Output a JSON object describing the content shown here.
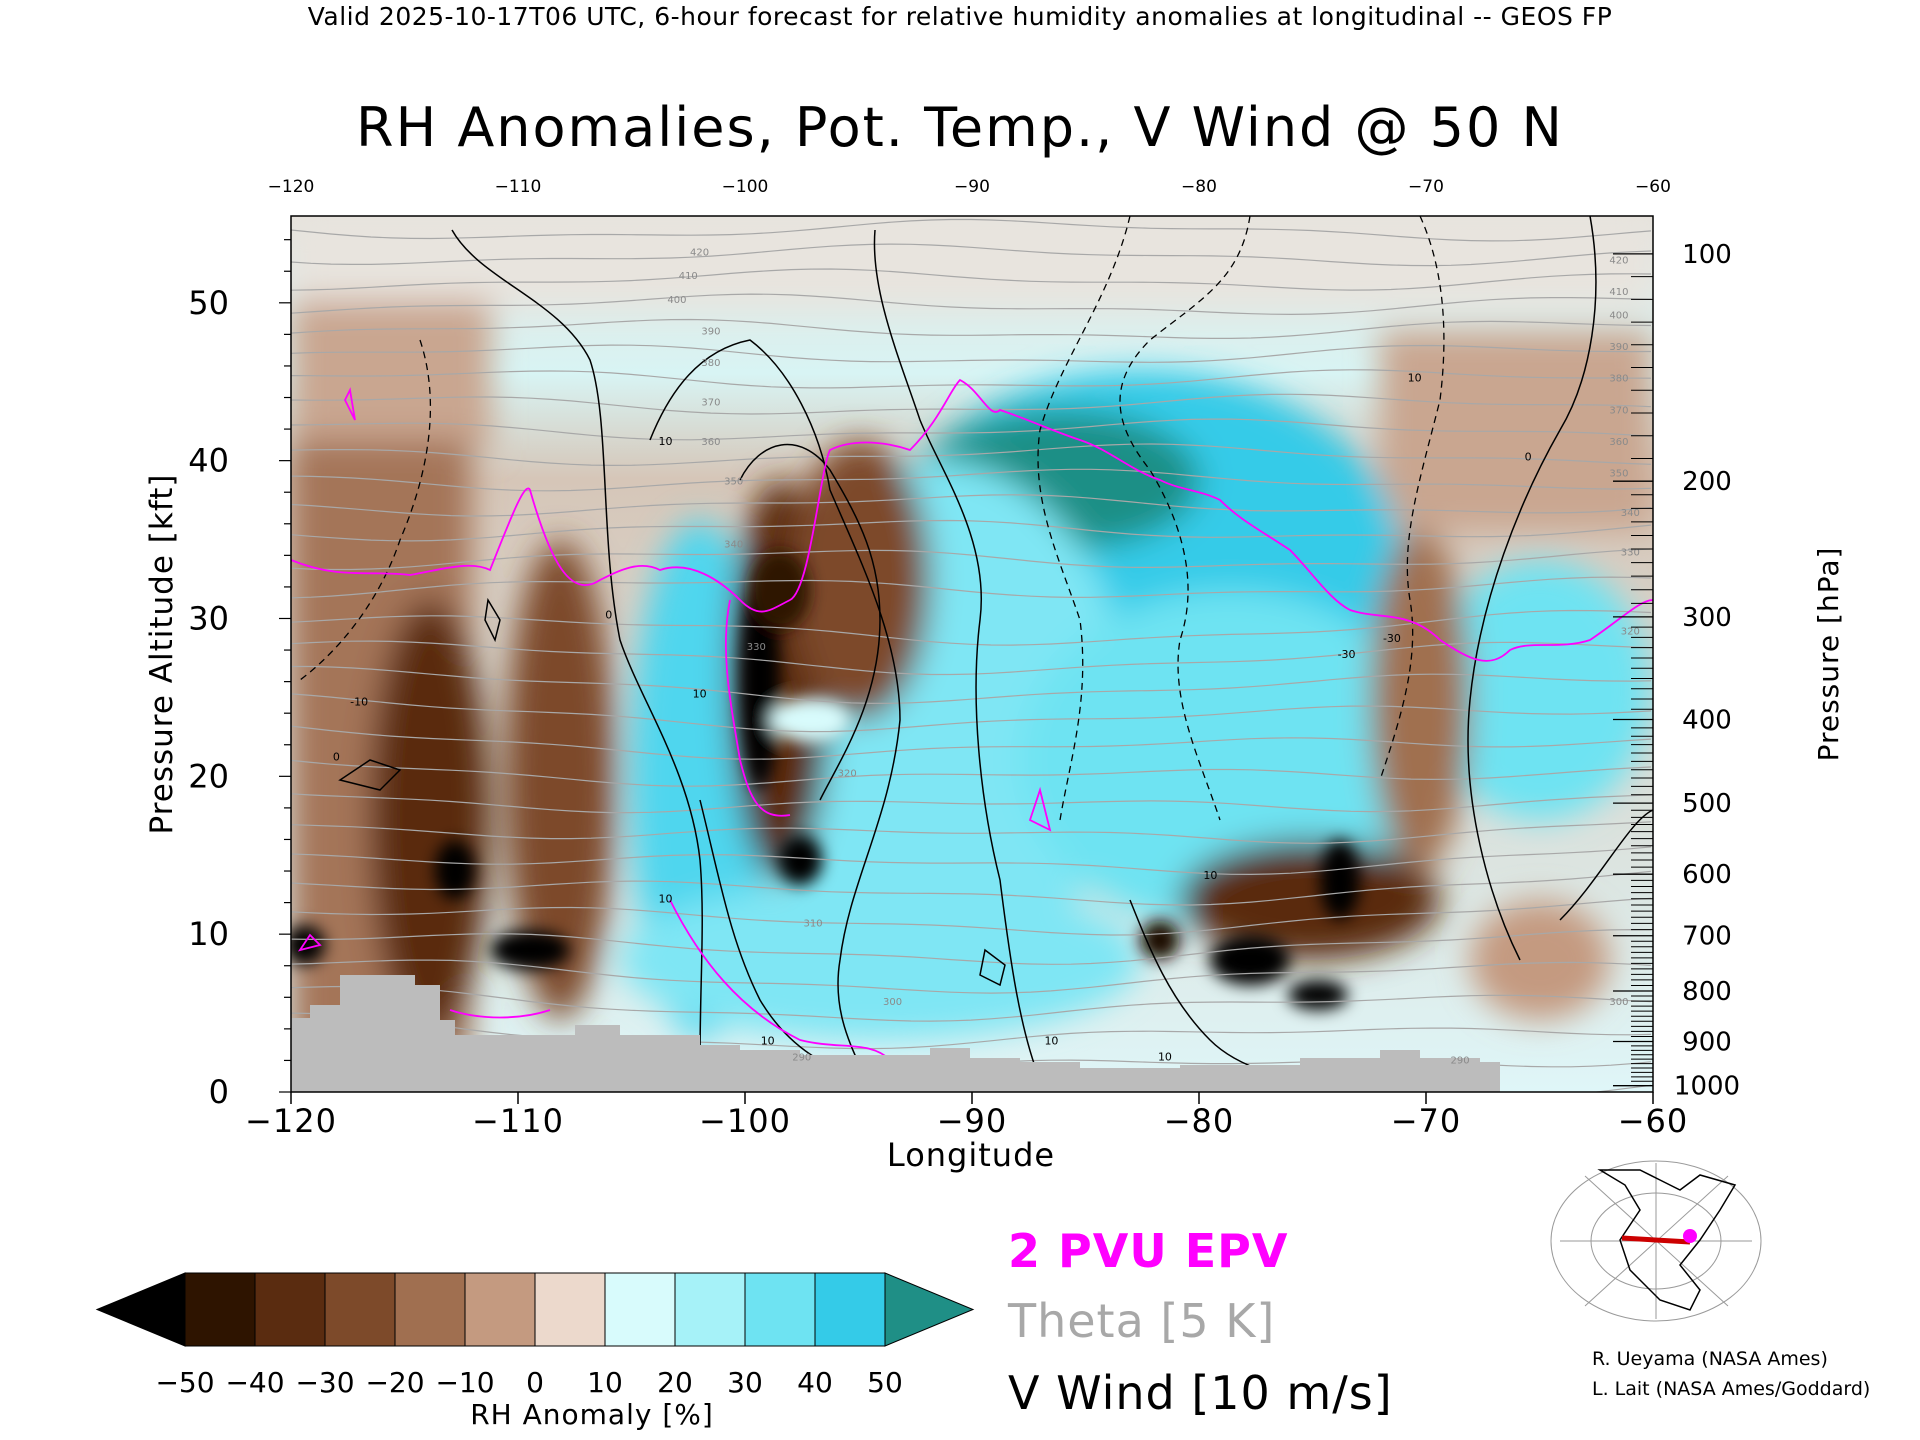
{
  "header": "Valid 2025-10-17T06 UTC, 6-hour forecast for relative humidity anomalies at longitudinal -- GEOS FP",
  "chart_data": {
    "type": "heatmap",
    "title": "RH Anomalies, Pot. Temp., V Wind @ 50 N",
    "xlabel": "Longitude",
    "ylabel_left": "Pressure Altitude [kft]",
    "ylabel_right": "Pressure [hPa]",
    "xlim": [
      -120,
      -60
    ],
    "ylim_kft": [
      0,
      55.5
    ],
    "x_ticks": [
      -120,
      -110,
      -100,
      -90,
      -80,
      -70,
      -60
    ],
    "x_tick_labels": [
      "−120",
      "−110",
      "−100",
      "−90",
      "−80",
      "−70",
      "−60"
    ],
    "y_ticks_kft": [
      0,
      10,
      20,
      30,
      40,
      50
    ],
    "pressure_ticks": [
      {
        "hPa": 100,
        "kft": 53.1
      },
      {
        "hPa": 200,
        "kft": 38.7
      },
      {
        "hPa": 300,
        "kft": 30.1
      },
      {
        "hPa": 400,
        "kft": 23.6
      },
      {
        "hPa": 500,
        "kft": 18.3
      },
      {
        "hPa": 600,
        "kft": 13.8
      },
      {
        "hPa": 700,
        "kft": 9.9
      },
      {
        "hPa": 800,
        "kft": 6.4
      },
      {
        "hPa": 900,
        "kft": 3.2
      },
      {
        "hPa": 1000,
        "kft": 0.4
      }
    ],
    "colorbar": {
      "label": "RH Anomaly [%]",
      "ticks": [
        -50,
        -40,
        -30,
        -20,
        -10,
        0,
        10,
        20,
        30,
        40,
        50
      ],
      "tick_labels": [
        "−50",
        "−40",
        "−30",
        "−20",
        "−10",
        "0",
        "10",
        "20",
        "30",
        "40",
        "50"
      ],
      "colors": [
        "#2e1400",
        "#5a2c10",
        "#7d4a2a",
        "#a06f50",
        "#c49a80",
        "#ecd9cc",
        "#d8fbfc",
        "#a6f2f8",
        "#6ee3f2",
        "#34cbe8",
        "#12a8cc"
      ],
      "under_color": "#000000",
      "over_color": "#1f8f86"
    },
    "legend": [
      {
        "label": "2 PVU EPV",
        "color": "#ff00ff"
      },
      {
        "label": "Theta [5 K]",
        "color": "#a8a8a8"
      },
      {
        "label": "V Wind [10 m/s]",
        "color": "#000000"
      }
    ],
    "theta_labels_left": [
      {
        "x": -102,
        "kft": 53,
        "text": "420"
      },
      {
        "x": -102.5,
        "kft": 51.5,
        "text": "410"
      },
      {
        "x": -103,
        "kft": 50,
        "text": "400"
      },
      {
        "x": -101.5,
        "kft": 48,
        "text": "390"
      },
      {
        "x": -101.5,
        "kft": 46,
        "text": "380"
      },
      {
        "x": -101.5,
        "kft": 43.5,
        "text": "370"
      },
      {
        "x": -101.5,
        "kft": 41,
        "text": "360"
      },
      {
        "x": -100.5,
        "kft": 38.5,
        "text": "350"
      },
      {
        "x": -100.5,
        "kft": 34.5,
        "text": "340"
      },
      {
        "x": -99.5,
        "kft": 28,
        "text": "330"
      },
      {
        "x": -95.5,
        "kft": 20,
        "text": "320"
      },
      {
        "x": -97,
        "kft": 10.5,
        "text": "310"
      },
      {
        "x": -93.5,
        "kft": 5.5,
        "text": "300"
      },
      {
        "x": -97.5,
        "kft": 2,
        "text": "290"
      },
      {
        "x": -68.5,
        "kft": 1.8,
        "text": "290"
      },
      {
        "x": -61.5,
        "kft": 5.5,
        "text": "300"
      },
      {
        "x": -61,
        "kft": 29,
        "text": "320"
      },
      {
        "x": -61,
        "kft": 34,
        "text": "330"
      },
      {
        "x": -61,
        "kft": 36.5,
        "text": "340"
      },
      {
        "x": -61.5,
        "kft": 39,
        "text": "350"
      },
      {
        "x": -61.5,
        "kft": 41,
        "text": "360"
      },
      {
        "x": -61.5,
        "kft": 43,
        "text": "370"
      },
      {
        "x": -61.5,
        "kft": 45,
        "text": "380"
      },
      {
        "x": -61.5,
        "kft": 47,
        "text": "390"
      },
      {
        "x": -61.5,
        "kft": 49,
        "text": "400"
      },
      {
        "x": -61.5,
        "kft": 50.5,
        "text": "410"
      },
      {
        "x": -61.5,
        "kft": 52.5,
        "text": "420"
      }
    ],
    "wind_labels": [
      {
        "x": -103.5,
        "kft": 41,
        "text": "10"
      },
      {
        "x": -106,
        "kft": 30,
        "text": "0"
      },
      {
        "x": -117,
        "kft": 24.5,
        "text": "-10"
      },
      {
        "x": -118,
        "kft": 21,
        "text": "0"
      },
      {
        "x": -102,
        "kft": 25,
        "text": "10"
      },
      {
        "x": -103.5,
        "kft": 12,
        "text": "10"
      },
      {
        "x": -99,
        "kft": 3,
        "text": "10"
      },
      {
        "x": -86.5,
        "kft": 3,
        "text": "10"
      },
      {
        "x": -81.5,
        "kft": 2,
        "text": "10"
      },
      {
        "x": -79.5,
        "kft": 13.5,
        "text": "10"
      },
      {
        "x": -71.5,
        "kft": 28.5,
        "text": "-30"
      },
      {
        "x": -73.5,
        "kft": 27.5,
        "text": "-30"
      },
      {
        "x": -70.5,
        "kft": 45,
        "text": "10"
      },
      {
        "x": -65.5,
        "kft": 40,
        "text": "0"
      }
    ]
  },
  "credits": [
    "R. Ueyama (NASA Ames)",
    "L. Lait (NASA Ames/Goddard)"
  ]
}
